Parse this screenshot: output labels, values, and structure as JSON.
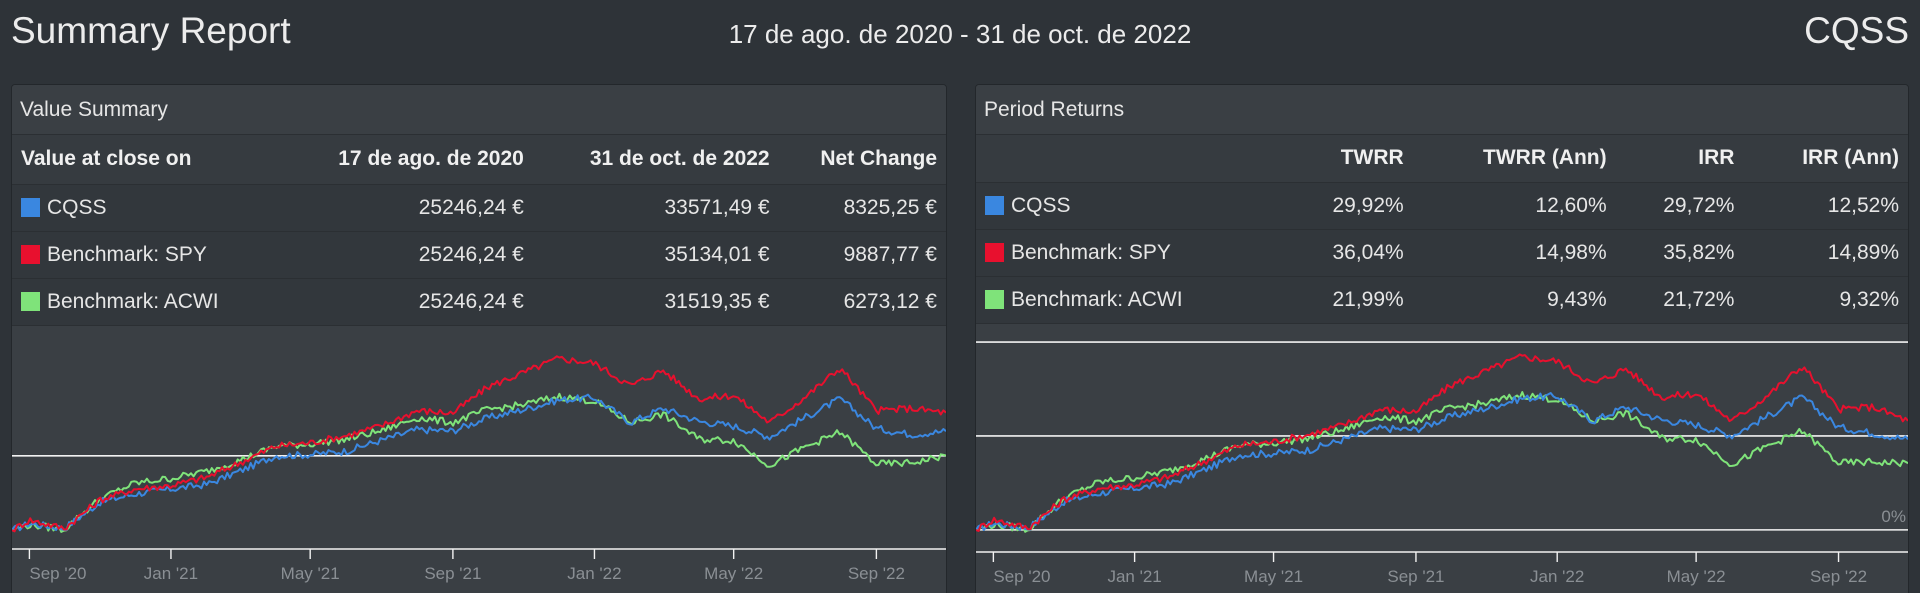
{
  "header": {
    "title": "Summary Report",
    "range": "17 de ago. de 2020 - 31 de oct. de 2022",
    "code": "CQSS"
  },
  "value_summary": {
    "title": "Value Summary",
    "columns": [
      "Value at close on",
      "17 de ago. de 2020",
      "31 de oct. de 2022",
      "Net Change"
    ],
    "rows": [
      {
        "name": "CQSS",
        "color": "#3a87e0",
        "start": "25246,24 €",
        "end": "33571,49 €",
        "change": "8325,25 €"
      },
      {
        "name": "Benchmark: SPY",
        "color": "#e8102e",
        "start": "25246,24 €",
        "end": "35134,01 €",
        "change": "9887,77 €"
      },
      {
        "name": "Benchmark: ACWI",
        "color": "#7fe37a",
        "start": "25246,24 €",
        "end": "31519,35 €",
        "change": "6273,12 €"
      }
    ]
  },
  "period_returns": {
    "title": "Period Returns",
    "columns": [
      "",
      "TWRR",
      "TWRR (Ann)",
      "IRR",
      "IRR (Ann)"
    ],
    "rows": [
      {
        "name": "CQSS",
        "color": "#3a87e0",
        "twrr": "29,92%",
        "twrr_ann": "12,60%",
        "irr": "29,72%",
        "irr_ann": "12,52%"
      },
      {
        "name": "Benchmark: SPY",
        "color": "#e8102e",
        "twrr": "36,04%",
        "twrr_ann": "14,98%",
        "irr": "35,82%",
        "irr_ann": "14,89%"
      },
      {
        "name": "Benchmark: ACWI",
        "color": "#7fe37a",
        "twrr": "21,99%",
        "twrr_ann": "9,43%",
        "irr": "21,72%",
        "irr_ann": "9,32%"
      }
    ]
  },
  "chart_data": [
    {
      "type": "line",
      "x": [
        "2020-08-17",
        "2020-09-01",
        "2020-10-01",
        "2020-11-01",
        "2020-12-01",
        "2021-01-01",
        "2021-02-01",
        "2021-03-01",
        "2021-04-01",
        "2021-05-01",
        "2021-06-01",
        "2021-07-01",
        "2021-08-01",
        "2021-09-01",
        "2021-10-01",
        "2021-11-01",
        "2021-12-01",
        "2022-01-01",
        "2022-02-01",
        "2022-03-01",
        "2022-04-01",
        "2022-05-01",
        "2022-06-01",
        "2022-07-01",
        "2022-08-01",
        "2022-09-01",
        "2022-10-01",
        "2022-10-31"
      ],
      "x_ticks": [
        "Sep '20",
        "Jan '21",
        "May '21",
        "Sep '21",
        "Jan '22",
        "May '22",
        "Sep '22"
      ],
      "series": [
        {
          "name": "CQSS",
          "color": "#3a87e0",
          "values": [
            25246,
            25800,
            25400,
            27600,
            28300,
            28700,
            29100,
            30200,
            31500,
            31600,
            31900,
            32800,
            33700,
            33600,
            34700,
            35400,
            36200,
            36400,
            34300,
            35500,
            34400,
            34000,
            33100,
            34700,
            36300,
            33800,
            33300,
            33571
          ]
        },
        {
          "name": "Benchmark: SPY",
          "color": "#e8102e",
          "values": [
            25246,
            26100,
            25400,
            27800,
            28700,
            29000,
            29700,
            30900,
            32300,
            32600,
            33200,
            34000,
            35300,
            35100,
            37300,
            38500,
            39700,
            39300,
            37400,
            38700,
            36300,
            36600,
            34300,
            36400,
            38900,
            35300,
            35500,
            35134
          ]
        },
        {
          "name": "Benchmark: ACWI",
          "color": "#7fe37a",
          "values": [
            25246,
            25700,
            25300,
            27900,
            29200,
            29600,
            30200,
            31100,
            32300,
            32500,
            32900,
            33600,
            34700,
            34300,
            35400,
            35800,
            36500,
            36100,
            34300,
            35000,
            32900,
            32800,
            30700,
            32200,
            33500,
            30800,
            30900,
            31519
          ]
        }
      ],
      "ylim": [
        24500,
        41500
      ],
      "baseline": 31500
    },
    {
      "type": "line",
      "x": [
        "2020-08-17",
        "2020-09-01",
        "2020-10-01",
        "2020-11-01",
        "2020-12-01",
        "2021-01-01",
        "2021-02-01",
        "2021-03-01",
        "2021-04-01",
        "2021-05-01",
        "2021-06-01",
        "2021-07-01",
        "2021-08-01",
        "2021-09-01",
        "2021-10-01",
        "2021-11-01",
        "2021-12-01",
        "2022-01-01",
        "2022-02-01",
        "2022-03-01",
        "2022-04-01",
        "2022-05-01",
        "2022-06-01",
        "2022-07-01",
        "2022-08-01",
        "2022-09-01",
        "2022-10-01",
        "2022-10-31"
      ],
      "x_ticks": [
        "Sep '20",
        "Jan '21",
        "May '21",
        "Sep '21",
        "Jan '22",
        "May '22",
        "Sep '22"
      ],
      "y_label": "0%",
      "series": [
        {
          "name": "CQSS",
          "color": "#3a87e0",
          "values": [
            0,
            2.2,
            0.6,
            9.3,
            12.1,
            13.7,
            15.3,
            19.6,
            24.8,
            25.2,
            26.4,
            29.9,
            33.5,
            33.1,
            37.4,
            40.2,
            43.4,
            44.2,
            35.9,
            40.6,
            36.3,
            34.7,
            31.1,
            37.4,
            43.8,
            33.9,
            31.9,
            29.9
          ]
        },
        {
          "name": "Benchmark: SPY",
          "color": "#e8102e",
          "values": [
            0,
            3.4,
            0.6,
            10.1,
            13.7,
            14.9,
            17.6,
            22.4,
            27.9,
            29.1,
            31.5,
            34.7,
            39.8,
            39.0,
            47.7,
            52.5,
            57.2,
            55.7,
            48.1,
            53.3,
            43.8,
            45.0,
            35.9,
            44.2,
            54.1,
            39.8,
            40.6,
            36.0
          ]
        },
        {
          "name": "Benchmark: ACWI",
          "color": "#7fe37a",
          "values": [
            0,
            1.8,
            0.2,
            10.5,
            15.7,
            17.2,
            19.6,
            23.2,
            27.9,
            28.7,
            30.3,
            33.1,
            37.4,
            35.9,
            40.2,
            41.8,
            44.6,
            43.0,
            35.9,
            38.6,
            30.3,
            29.9,
            21.6,
            27.5,
            32.7,
            22.0,
            22.4,
            22.0
          ]
        }
      ],
      "ylim": [
        -4,
        64
      ],
      "gridlines": [
        0,
        31,
        62
      ]
    }
  ]
}
